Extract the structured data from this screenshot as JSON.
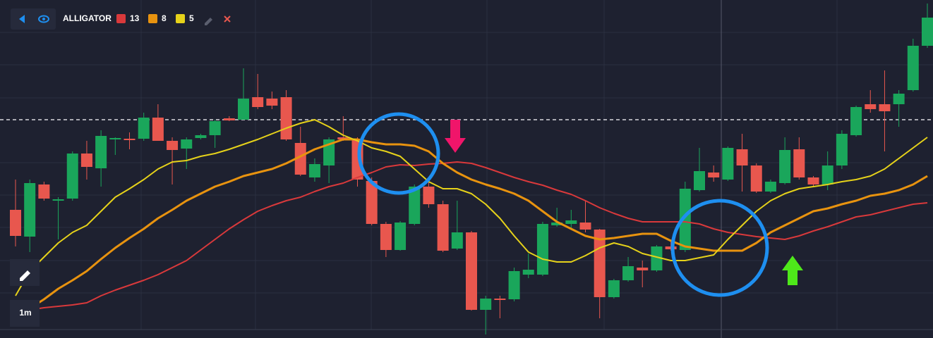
{
  "toolbar": {
    "indicator": "ALLIGATOR",
    "timeframe": "1m"
  },
  "chart_data": {
    "type": "candlestick",
    "ylim": [
      0,
      480
    ],
    "price_line": 310,
    "up_color": "#1aa65b",
    "down_color": "#e8574e",
    "candles": {
      "open": [
        182,
        144,
        218,
        195,
        198,
        262,
        241,
        282,
        283,
        283,
        313,
        280,
        269,
        284,
        288,
        312,
        310,
        342,
        340,
        342,
        277,
        228,
        245,
        285,
        282,
        223,
        162,
        125,
        162,
        215,
        190,
        127,
        150,
        40,
        56,
        55,
        90,
        90,
        160,
        162,
        164,
        154,
        58,
        82,
        100,
        96,
        130,
        125,
        210,
        235,
        225,
        268,
        245,
        208,
        220,
        268,
        228,
        218,
        245,
        288,
        332,
        332,
        332,
        352,
        415
      ],
      "high": [
        225,
        225,
        222,
        200,
        265,
        280,
        295,
        285,
        292,
        320,
        332,
        285,
        285,
        290,
        310,
        315,
        383,
        375,
        350,
        352,
        300,
        255,
        285,
        315,
        285,
        228,
        165,
        166,
        218,
        225,
        195,
        195,
        152,
        60,
        60,
        100,
        120,
        165,
        185,
        182,
        195,
        155,
        84,
        115,
        110,
        132,
        140,
        222,
        270,
        245,
        272,
        290,
        248,
        225,
        285,
        285,
        230,
        265,
        295,
        330,
        352,
        380,
        352,
        425,
        475
      ],
      "low": [
        130,
        122,
        195,
        140,
        195,
        225,
        215,
        260,
        268,
        280,
        280,
        218,
        240,
        282,
        270,
        308,
        310,
        325,
        325,
        280,
        230,
        222,
        220,
        280,
        215,
        160,
        115,
        124,
        160,
        185,
        122,
        125,
        39,
        5,
        28,
        52,
        85,
        88,
        158,
        155,
        150,
        28,
        56,
        80,
        72,
        94,
        124,
        122,
        208,
        222,
        223,
        208,
        206,
        206,
        218,
        225,
        215,
        210,
        240,
        286,
        320,
        265,
        300,
        350,
        412
      ],
      "close": [
        145,
        220,
        198,
        197,
        262,
        243,
        287,
        284,
        281,
        313,
        280,
        267,
        282,
        288,
        308,
        309,
        340,
        328,
        330,
        282,
        232,
        247,
        282,
        282,
        225,
        162,
        125,
        164,
        215,
        190,
        124,
        150,
        40,
        56,
        54,
        95,
        97,
        162,
        164,
        167,
        154,
        58,
        82,
        102,
        96,
        130,
        126,
        212,
        237,
        228,
        270,
        245,
        208,
        222,
        267,
        228,
        218,
        245,
        290,
        328,
        325,
        322,
        347,
        415,
        455
      ]
    },
    "series": [
      {
        "name": "13",
        "color": "#d9393b",
        "values": [
          35,
          40,
          43,
          45,
          47,
          50,
          60,
          68,
          75,
          82,
          90,
          100,
          110,
          125,
          140,
          155,
          168,
          180,
          188,
          195,
          200,
          208,
          215,
          220,
          228,
          235,
          243,
          246,
          245,
          247,
          248,
          250,
          248,
          242,
          235,
          228,
          222,
          217,
          210,
          204,
          195,
          185,
          177,
          170,
          165,
          165,
          165,
          165,
          162,
          155,
          150,
          147,
          144,
          142,
          140,
          145,
          152,
          158,
          165,
          172,
          175,
          180,
          185,
          190,
          192
        ]
      },
      {
        "name": "8",
        "color": "#e8930f",
        "values": [
          30,
          42,
          55,
          70,
          82,
          95,
          112,
          128,
          142,
          155,
          170,
          182,
          195,
          205,
          215,
          222,
          230,
          235,
          240,
          248,
          258,
          268,
          275,
          282,
          282,
          278,
          275,
          275,
          273,
          265,
          248,
          235,
          225,
          218,
          212,
          205,
          195,
          180,
          165,
          155,
          145,
          140,
          142,
          145,
          148,
          148,
          138,
          130,
          127,
          124,
          124,
          124,
          135,
          150,
          160,
          170,
          180,
          184,
          190,
          195,
          202,
          205,
          210,
          218,
          230
        ]
      },
      {
        "name": "5",
        "color": "#e6d21a",
        "values": [
          60,
          95,
          115,
          135,
          150,
          160,
          180,
          200,
          212,
          225,
          240,
          250,
          252,
          258,
          262,
          268,
          275,
          282,
          290,
          298,
          305,
          310,
          300,
          288,
          280,
          270,
          265,
          258,
          240,
          222,
          212,
          212,
          205,
          190,
          170,
          145,
          122,
          112,
          108,
          108,
          117,
          128,
          135,
          130,
          120,
          115,
          110,
          110,
          114,
          118,
          140,
          160,
          180,
          195,
          205,
          212,
          215,
          218,
          222,
          225,
          230,
          240,
          255,
          270,
          285
        ]
      }
    ]
  }
}
